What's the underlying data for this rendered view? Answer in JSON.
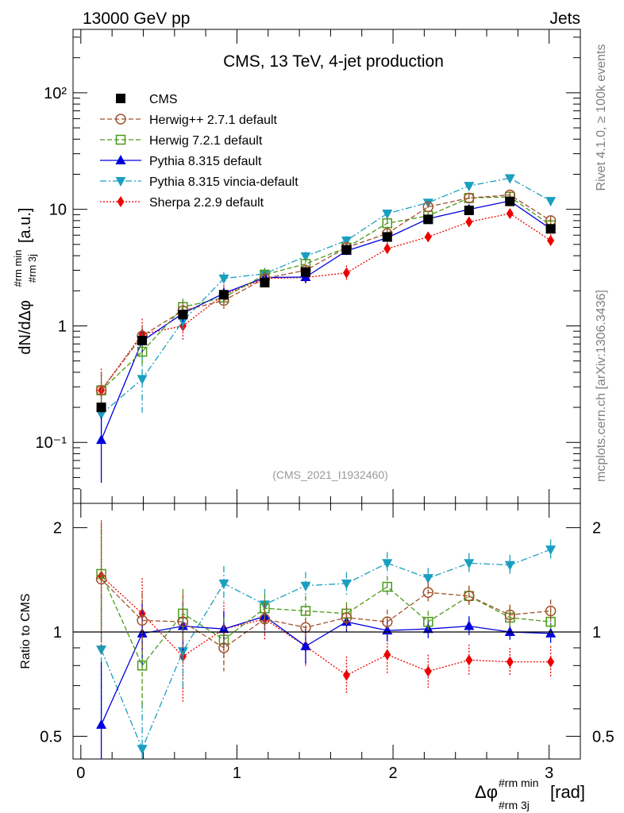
{
  "header": {
    "energy_label": "13000 GeV pp",
    "category_label": "Jets"
  },
  "side_labels": {
    "rivet": "Rivet 4.1.0, ≥ 100k events",
    "mcplots": "mcplots.cern.ch [arXiv:1306.3436]"
  },
  "colors": {
    "cms": "#000000",
    "herwigpp": "#a0522d",
    "herwig7": "#4b9a1a",
    "pythia": "#0000dd",
    "vincia": "#1a9fc0",
    "sherpa": "#ee0000",
    "ref_watermark": "#999999"
  },
  "chart_data": [
    {
      "id": "main",
      "type": "scatter",
      "title": "CMS, 13 TeV, 4-jet production",
      "ylabel_main": "dN/dΔφ",
      "ylabel_sup": "#rm min",
      "ylabel_sub": "#rm 3j",
      "ylabel_unit": "[a.u.]",
      "yscale": "log",
      "xlim": [
        -0.05,
        3.2
      ],
      "ylim": [
        0.03,
        350
      ],
      "ytick_labels": [
        "10⁻¹",
        "1",
        "10",
        "10²"
      ],
      "ytick_values": [
        0.1,
        1,
        10,
        100
      ],
      "watermark": "(CMS_2021_I1932460)",
      "x": [
        0.131,
        0.393,
        0.654,
        0.916,
        1.178,
        1.44,
        1.702,
        1.963,
        2.225,
        2.487,
        2.749,
        3.01
      ],
      "series": [
        {
          "name": "CMS",
          "key": "cms",
          "marker": "square-filled",
          "line": "none",
          "values": [
            0.2,
            0.75,
            1.25,
            1.85,
            2.35,
            2.9,
            4.5,
            5.8,
            8.2,
            9.8,
            11.7,
            6.8
          ],
          "err_lo": [
            0.02,
            0.05,
            0.08,
            0.1,
            0.12,
            0.15,
            0.2,
            0.25,
            0.35,
            0.4,
            0.5,
            0.35
          ],
          "err_hi": [
            0.02,
            0.05,
            0.08,
            0.1,
            0.12,
            0.15,
            0.2,
            0.25,
            0.35,
            0.4,
            0.5,
            0.35
          ]
        },
        {
          "name": "Herwig++ 2.7.1 default",
          "key": "herwigpp",
          "marker": "circle-open",
          "line": "dashed",
          "values": [
            0.28,
            0.82,
            1.35,
            1.65,
            2.55,
            3.0,
            4.7,
            6.2,
            10.5,
            12.5,
            13.3,
            8.0
          ],
          "err_lo": [
            0.09,
            0.15,
            0.2,
            0.25,
            0.25,
            0.3,
            0.4,
            0.5,
            0.7,
            0.9,
            0.9,
            0.7
          ],
          "err_hi": [
            0.12,
            0.18,
            0.25,
            0.3,
            0.3,
            0.35,
            0.45,
            0.55,
            0.8,
            1.0,
            1.0,
            0.8
          ]
        },
        {
          "name": "Herwig 7.2.1 default",
          "key": "herwig7",
          "marker": "square-open",
          "line": "dashed",
          "values": [
            0.28,
            0.6,
            1.45,
            1.75,
            2.75,
            3.4,
            4.7,
            7.6,
            8.8,
            12.5,
            12.8,
            7.3
          ],
          "err_lo": [
            0.08,
            0.15,
            0.22,
            0.25,
            0.3,
            0.35,
            0.4,
            0.55,
            0.6,
            0.9,
            0.9,
            0.6
          ],
          "err_hi": [
            0.1,
            0.18,
            0.26,
            0.3,
            0.35,
            0.4,
            0.45,
            0.6,
            0.7,
            1.0,
            1.0,
            0.7
          ]
        },
        {
          "name": "Pythia 8.315 default",
          "key": "pythia",
          "marker": "triangle-up-filled",
          "line": "solid",
          "values": [
            0.105,
            0.74,
            1.28,
            1.9,
            2.6,
            2.62,
            4.4,
            5.7,
            8.3,
            10.0,
            11.8,
            6.8
          ],
          "err_lo": [
            0.06,
            0.15,
            0.2,
            0.22,
            0.25,
            0.3,
            0.35,
            0.45,
            0.55,
            0.7,
            0.8,
            0.5
          ],
          "err_hi": [
            0.06,
            0.17,
            0.22,
            0.25,
            0.3,
            0.35,
            0.4,
            0.5,
            0.6,
            0.8,
            0.9,
            0.6
          ]
        },
        {
          "name": "Pythia 8.315 vincia-default",
          "key": "vincia",
          "marker": "triangle-down-filled",
          "line": "dashdot",
          "values": [
            0.175,
            0.35,
            1.1,
            2.55,
            2.8,
            3.95,
            5.4,
            9.2,
            11.4,
            15.9,
            18.5,
            11.8
          ],
          "err_lo": [
            0.06,
            0.17,
            0.2,
            0.3,
            0.3,
            0.35,
            0.45,
            0.6,
            0.7,
            1.0,
            1.1,
            0.8
          ],
          "err_hi": [
            0.08,
            0.2,
            0.25,
            0.35,
            0.35,
            0.4,
            0.5,
            0.65,
            0.8,
            1.1,
            1.2,
            0.9
          ]
        },
        {
          "name": "Sherpa 2.2.9 default",
          "key": "sherpa",
          "marker": "diamond-filled",
          "line": "dotted",
          "values": [
            0.28,
            0.85,
            1.0,
            1.85,
            2.55,
            2.6,
            2.85,
            4.6,
            5.8,
            7.8,
            9.2,
            5.4
          ],
          "err_lo": [
            0.13,
            0.28,
            0.26,
            0.35,
            0.35,
            0.3,
            0.4,
            0.55,
            0.55,
            0.7,
            0.8,
            0.6
          ],
          "err_hi": [
            0.15,
            0.3,
            0.3,
            0.4,
            0.4,
            0.35,
            0.45,
            0.6,
            0.6,
            0.8,
            0.9,
            0.7
          ]
        }
      ]
    },
    {
      "id": "ratio",
      "type": "scatter",
      "ylabel": "Ratio to CMS",
      "xlabel_main": "Δφ",
      "xlabel_sup": "#rm min",
      "xlabel_sub": "#rm 3j",
      "xlabel_unit": "[rad]",
      "yscale": "log",
      "xlim": [
        -0.05,
        3.2
      ],
      "ylim": [
        0.43,
        2.35
      ],
      "xtick_values": [
        0,
        1,
        2,
        3
      ],
      "xtick_labels": [
        "0",
        "1",
        "2",
        "3"
      ],
      "ytick_values": [
        0.5,
        1,
        2
      ],
      "ytick_labels": [
        "0.5",
        "1",
        "2"
      ],
      "reference_line": 1,
      "x": [
        0.131,
        0.393,
        0.654,
        0.916,
        1.178,
        1.44,
        1.702,
        1.963,
        2.225,
        2.487,
        2.749,
        3.01
      ],
      "series": [
        {
          "name": "Herwig++ 2.7.1 default",
          "key": "herwigpp",
          "marker": "circle-open",
          "line": "dashed",
          "values": [
            1.42,
            1.08,
            1.07,
            0.9,
            1.09,
            1.03,
            1.1,
            1.07,
            1.3,
            1.27,
            1.12,
            1.15
          ],
          "err_lo": [
            0.55,
            0.2,
            0.2,
            0.13,
            0.11,
            0.1,
            0.08,
            0.08,
            0.08,
            0.08,
            0.07,
            0.08
          ],
          "err_hi": [
            0.65,
            0.22,
            0.22,
            0.15,
            0.12,
            0.12,
            0.09,
            0.09,
            0.09,
            0.09,
            0.08,
            0.09
          ]
        },
        {
          "name": "Herwig 7.2.1 default",
          "key": "herwig7",
          "marker": "square-open",
          "line": "dashed",
          "values": [
            1.47,
            0.8,
            1.13,
            0.95,
            1.17,
            1.15,
            1.13,
            1.35,
            1.07,
            1.27,
            1.1,
            1.07
          ],
          "err_lo": [
            0.45,
            0.2,
            0.17,
            0.13,
            0.11,
            0.1,
            0.08,
            0.09,
            0.07,
            0.08,
            0.07,
            0.08
          ],
          "err_hi": [
            0.55,
            0.22,
            0.2,
            0.15,
            0.12,
            0.12,
            0.09,
            0.1,
            0.08,
            0.09,
            0.08,
            0.09
          ]
        },
        {
          "name": "Pythia 8.315 default",
          "key": "pythia",
          "marker": "triangle-up-filled",
          "line": "solid",
          "values": [
            0.54,
            0.99,
            1.04,
            1.02,
            1.11,
            0.91,
            1.07,
            1.01,
            1.02,
            1.04,
            1.0,
            0.99
          ],
          "err_lo": [
            0.25,
            0.2,
            0.16,
            0.12,
            0.1,
            0.1,
            0.07,
            0.07,
            0.06,
            0.06,
            0.05,
            0.06
          ],
          "err_hi": [
            0.28,
            0.22,
            0.18,
            0.13,
            0.11,
            0.11,
            0.08,
            0.08,
            0.07,
            0.07,
            0.06,
            0.07
          ]
        },
        {
          "name": "Pythia 8.315 vincia-default",
          "key": "vincia",
          "marker": "triangle-down-filled",
          "line": "dashdot",
          "values": [
            0.89,
            0.46,
            0.88,
            1.38,
            1.2,
            1.36,
            1.38,
            1.58,
            1.43,
            1.58,
            1.56,
            1.73
          ],
          "err_lo": [
            0.35,
            0.15,
            0.2,
            0.15,
            0.12,
            0.12,
            0.1,
            0.11,
            0.09,
            0.1,
            0.1,
            0.11
          ],
          "err_hi": [
            0.4,
            0.17,
            0.22,
            0.17,
            0.13,
            0.13,
            0.11,
            0.12,
            0.1,
            0.11,
            0.11,
            0.12
          ]
        },
        {
          "name": "Sherpa 2.2.9 default",
          "key": "sherpa",
          "marker": "diamond-filled",
          "line": "dotted",
          "values": [
            1.45,
            1.13,
            0.85,
            1.02,
            1.09,
            0.91,
            0.75,
            0.86,
            0.77,
            0.83,
            0.82,
            0.82
          ],
          "err_lo": [
            0.55,
            0.28,
            0.22,
            0.18,
            0.14,
            0.12,
            0.09,
            0.1,
            0.08,
            0.08,
            0.07,
            0.08
          ],
          "err_hi": [
            0.65,
            0.3,
            0.25,
            0.2,
            0.15,
            0.13,
            0.1,
            0.11,
            0.09,
            0.09,
            0.08,
            0.09
          ]
        }
      ]
    }
  ]
}
